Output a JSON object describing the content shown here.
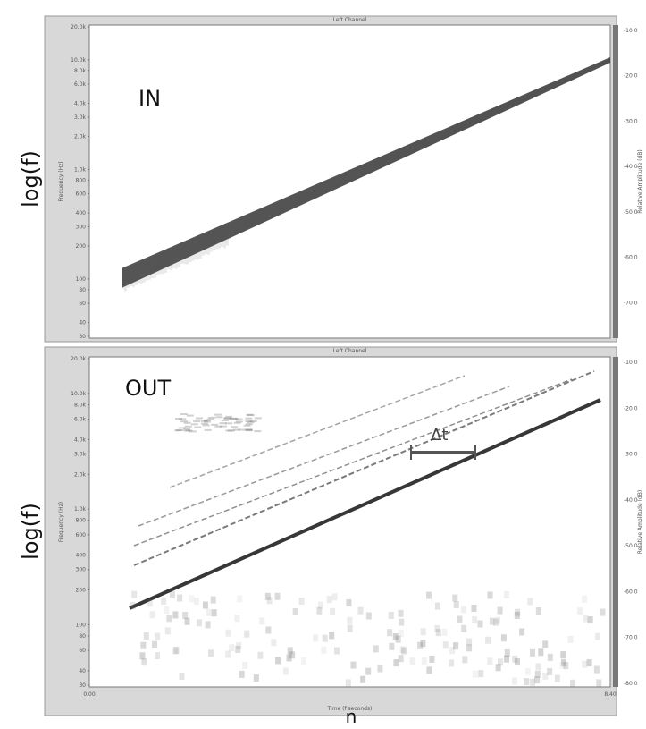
{
  "panels": [
    {
      "title": "Left Channel",
      "annotation": "IN",
      "outer_ylabel": "log(f)",
      "ylabel": "Frequency (Hz)",
      "yticks": [
        "20.0k",
        "10.0k",
        "8.0k",
        "6.0k",
        "4.0k",
        "3.0k",
        "2.0k",
        "1.0k",
        "800",
        "600",
        "400",
        "300",
        "200",
        "100",
        "80",
        "60",
        "40",
        "30"
      ],
      "colorbar_label": "Relative Amplitude (dB)",
      "colorbar_ticks": [
        "-10.0",
        "-20.0",
        "-30.0",
        "-40.0",
        "-50.0",
        "-60.0",
        "-70.0"
      ]
    },
    {
      "title": "Left Channel",
      "annotation": "OUT",
      "outer_ylabel": "log(f)",
      "ylabel": "Frequency (Hz)",
      "yticks": [
        "20.0k",
        "10.0k",
        "8.0k",
        "6.0k",
        "4.0k",
        "3.0k",
        "2.0k",
        "1.0k",
        "800",
        "600",
        "400",
        "300",
        "200",
        "100",
        "80",
        "60",
        "40",
        "30"
      ],
      "colorbar_label": "Relative Amplitude (dB)",
      "colorbar_ticks": [
        "-10.0",
        "-20.0",
        "-30.0",
        "-40.0",
        "-50.0",
        "-60.0",
        "-70.0",
        "-80.0"
      ],
      "xlabel": "Time (f seconds)",
      "xticks": [
        "0.00",
        "8.40"
      ],
      "delta_label": "Δt"
    }
  ],
  "xaxis_label": "n"
}
